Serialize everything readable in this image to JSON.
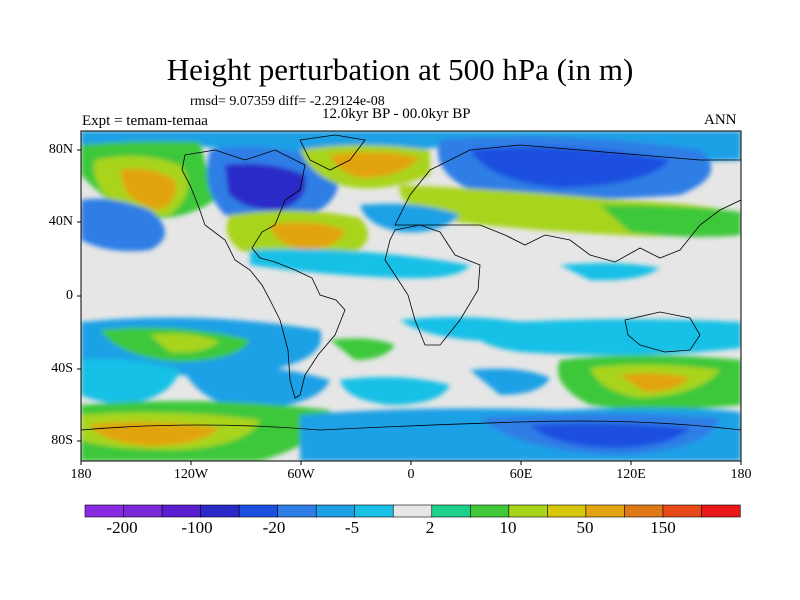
{
  "title": "Height perturbation at 500 hPa (in m)",
  "stats": "rmsd= 9.07359 diff= -2.29124e-08",
  "period": "12.0kyr BP - 00.0kyr BP",
  "experiment": "Expt = temam-temaa",
  "season": "ANN",
  "lat_ticks": [
    "80N",
    "40N",
    "0",
    "40S",
    "80S"
  ],
  "lon_ticks": [
    "180",
    "120W",
    "60W",
    "0",
    "60E",
    "120E",
    "180"
  ],
  "colorbar": {
    "colors": [
      "#8a2be2",
      "#7b28d8",
      "#5a1fd0",
      "#2a2ac8",
      "#1a4fe0",
      "#2f7ee6",
      "#1ea0e6",
      "#18c0e6",
      "#e6e6e6",
      "#1fd08a",
      "#3ec83a",
      "#a8d41a",
      "#d8c60a",
      "#e2a410",
      "#e07818",
      "#e64a18",
      "#e81818"
    ],
    "labels": [
      "-200",
      "-100",
      "-20",
      "-5",
      "2",
      "10",
      "50",
      "150"
    ]
  },
  "palette": {
    "ocean_bg": "#e6e6e6",
    "cyan": "#18c0e6",
    "mid_blue": "#2f7ee6",
    "deep_blue": "#1a4fe0",
    "navy": "#2a2ac8",
    "green": "#3ec83a",
    "teal": "#1fd08a",
    "yellow_green": "#a8d41a",
    "orange": "#e2a410",
    "dark_orange": "#e07818"
  }
}
